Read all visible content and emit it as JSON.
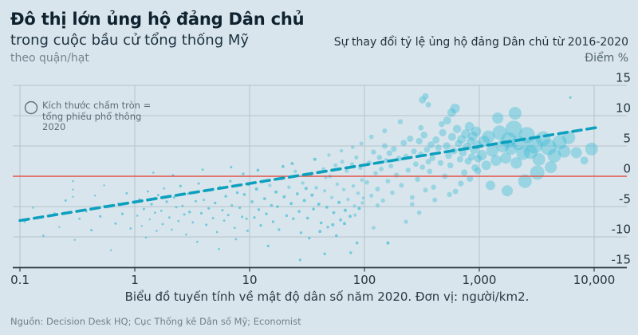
{
  "header": {
    "title": "Đô thị lớn ủng hộ đảng Dân chủ",
    "subtitle": "trong cuộc bầu cử tổng thống Mỹ",
    "unit_note": "theo quận/hạt",
    "right_title": "Sự thay đổi tỷ lệ ủng hộ đảng Dân chủ từ 2016-2020",
    "right_unit": "Điểm %"
  },
  "legend": {
    "icon": "circle-outline-icon",
    "lines": [
      "Kích thước chấm tròn =",
      "tổng phiếu phổ thông",
      "2020"
    ]
  },
  "caption": "Biểu đồ tuyến tính về mật độ dân số năm 2020. Đơn vị: người/km2.",
  "source": "Nguồn: Decision Desk HQ; Cục Thống kê Dân số Mỹ; Economist",
  "colors": {
    "background": "#d9e5ec",
    "brand_red": "#e3120b",
    "zero_line_red": "#e25549",
    "bubble_teal": "#49bfd6",
    "trend_teal": "#0ca0be",
    "grid": "#b4c3cb",
    "axis": "#2e3d47",
    "text_dark": "#24343f",
    "text_gray": "#72828c"
  },
  "chart_data": {
    "type": "scatter",
    "title": "Đô thị lớn ủng hộ đảng Dân chủ trong cuộc bầu cử tổng thống Mỹ, theo quận/hạt",
    "subtitle": "Sự thay đổi tỷ lệ ủng hộ đảng Dân chủ từ 2016-2020, Điểm %",
    "xlabel": "Mật độ dân số năm 2020 (người/km2), thang log",
    "ylabel": "Điểm %",
    "x_axis": {
      "scale": "log",
      "ticks": [
        0.1,
        1,
        10,
        100,
        1000,
        10000
      ],
      "tick_labels": [
        "0.1",
        "1",
        "10",
        "100",
        "1,000",
        "10,000"
      ],
      "range": [
        0.1,
        10000
      ]
    },
    "y_axis": {
      "ticks": [
        15,
        10,
        5,
        0,
        -5,
        -10,
        -15
      ],
      "range": [
        -15,
        15
      ],
      "grid": true
    },
    "zero_line": 0,
    "legend_note": "Kích thước chấm tròn = tổng phiếu phổ thông 2020",
    "trend_line": {
      "style": "dashed",
      "x": [
        0.1,
        11000
      ],
      "y": [
        -7.3,
        8.1
      ]
    },
    "points_format": [
      "density_per_km2",
      "change_points",
      "radius_px"
    ],
    "points": [
      [
        0.11,
        -7.5,
        1.3
      ],
      [
        0.13,
        -5.2,
        1.2
      ],
      [
        0.16,
        -9.8,
        1.4
      ],
      [
        0.2,
        -6.1,
        1.3
      ],
      [
        0.22,
        -8.4,
        1.2
      ],
      [
        0.25,
        -4,
        1.5
      ],
      [
        0.29,
        -0.8,
        1.2
      ],
      [
        0.29,
        -2.2,
        1.2
      ],
      [
        0.29,
        -3.4,
        1.2
      ],
      [
        0.3,
        -10.5,
        1.2
      ],
      [
        0.33,
        -7,
        1.4
      ],
      [
        0.38,
        -5.8,
        1.3
      ],
      [
        0.42,
        -8.9,
        1.5
      ],
      [
        0.45,
        -3.2,
        1.2
      ],
      [
        0.5,
        -6.6,
        1.6
      ],
      [
        0.54,
        -1.5,
        1.2
      ],
      [
        0.54,
        -4.9,
        1.3
      ],
      [
        0.6,
        -5,
        1.4
      ],
      [
        0.62,
        -12.2,
        1.2
      ],
      [
        0.68,
        -7.8,
        1.5
      ],
      [
        0.72,
        -4.5,
        1.3
      ],
      [
        0.78,
        -6.2,
        1.6
      ],
      [
        0.85,
        -2.8,
        1.4
      ],
      [
        0.92,
        -8.6,
        1.4
      ],
      [
        1.05,
        -6.5,
        1.3
      ],
      [
        1.1,
        -3.8,
        1.4
      ],
      [
        1.15,
        -8.2,
        1.2
      ],
      [
        1.2,
        -5.4,
        1.5
      ],
      [
        1.25,
        -10.1,
        1.3
      ],
      [
        1.3,
        -2.5,
        1.4
      ],
      [
        1.35,
        -7.1,
        1.2
      ],
      [
        1.4,
        -4.6,
        1.6
      ],
      [
        1.5,
        -6,
        1.4
      ],
      [
        1.55,
        -9,
        1.3
      ],
      [
        1.6,
        -3.1,
        1.5
      ],
      [
        1.7,
        -5.7,
        1.3
      ],
      [
        1.75,
        -7.9,
        1.4
      ],
      [
        1.8,
        -2,
        1.3
      ],
      [
        1.9,
        -4.2,
        1.6
      ],
      [
        2,
        -6.8,
        1.4
      ],
      [
        2.1,
        -8.8,
        1.3
      ],
      [
        2.2,
        -3.5,
        1.5
      ],
      [
        2.3,
        -5.1,
        1.4
      ],
      [
        2.4,
        -7.4,
        1.3
      ],
      [
        2.5,
        -1.6,
        1.6
      ],
      [
        2.6,
        -4.9,
        1.4
      ],
      [
        2.7,
        -6.3,
        1.5
      ],
      [
        2.8,
        -9.6,
        1.3
      ],
      [
        2.9,
        -2.9,
        1.4
      ],
      [
        3,
        -5.9,
        1.7
      ],
      [
        3.2,
        -7.6,
        1.4
      ],
      [
        3.4,
        -4.1,
        1.5
      ],
      [
        3.5,
        -10.8,
        1.3
      ],
      [
        3.6,
        -1.2,
        1.5
      ],
      [
        3.8,
        -6.1,
        1.6
      ],
      [
        4,
        -3.9,
        1.4
      ],
      [
        4.2,
        -8,
        1.5
      ],
      [
        4.4,
        -5.3,
        1.6
      ],
      [
        4.6,
        -2.3,
        1.4
      ],
      [
        4.8,
        -6.9,
        1.5
      ],
      [
        5,
        -4.4,
        1.7
      ],
      [
        5.2,
        -9.2,
        1.4
      ],
      [
        5.5,
        -1.8,
        1.6
      ],
      [
        5.8,
        -5.6,
        1.5
      ],
      [
        6,
        -7.3,
        1.4
      ],
      [
        6.2,
        -3.3,
        1.7
      ],
      [
        6.5,
        -6.4,
        1.5
      ],
      [
        6.8,
        -0.8,
        1.6
      ],
      [
        7,
        -4.8,
        1.5
      ],
      [
        7.4,
        -8.5,
        1.4
      ],
      [
        7.8,
        -2.7,
        1.7
      ],
      [
        8.2,
        -5.2,
        1.6
      ],
      [
        8.6,
        -6.7,
        1.5
      ],
      [
        9,
        -3,
        1.8
      ],
      [
        9.4,
        -7,
        1.5
      ],
      [
        9.8,
        -1.4,
        1.6
      ],
      [
        1.45,
        0.6,
        1.3
      ],
      [
        2.15,
        0.2,
        1.4
      ],
      [
        3.9,
        1.1,
        1.4
      ],
      [
        6.9,
        1.5,
        1.5
      ],
      [
        8.8,
        0.4,
        1.6
      ],
      [
        5.4,
        -12,
        1.3
      ],
      [
        7.6,
        -10.4,
        1.4
      ],
      [
        9.6,
        -9,
        1.5
      ],
      [
        10.5,
        -4.2,
        1.8
      ],
      [
        11,
        -6.8,
        1.6
      ],
      [
        11.5,
        -2.1,
        2
      ],
      [
        12,
        -5.5,
        1.7
      ],
      [
        12.5,
        -8.1,
        1.6
      ],
      [
        13,
        -0.9,
        2.1
      ],
      [
        13.5,
        -3.7,
        1.8
      ],
      [
        14,
        -6.2,
        1.7
      ],
      [
        15,
        -1.5,
        2.2
      ],
      [
        15.5,
        -4.8,
        1.8
      ],
      [
        16,
        -7.5,
        1.6
      ],
      [
        17,
        -2.6,
        2
      ],
      [
        17.5,
        -5,
        1.8
      ],
      [
        18,
        -8.8,
        1.6
      ],
      [
        19,
        -0.4,
        2.1
      ],
      [
        20,
        -3.4,
        1.9
      ],
      [
        21,
        -6.5,
        1.7
      ],
      [
        22,
        -1.8,
        2.2
      ],
      [
        23,
        -4.5,
        1.9
      ],
      [
        24,
        -7,
        1.7
      ],
      [
        25,
        0.8,
        2.3
      ],
      [
        26,
        -2.9,
        1.9
      ],
      [
        27,
        -5.8,
        1.8
      ],
      [
        28,
        -9.3,
        1.6
      ],
      [
        29,
        -1.1,
        2.2
      ],
      [
        30,
        -4,
        2
      ],
      [
        32,
        -6.9,
        1.8
      ],
      [
        34,
        0.3,
        2.3
      ],
      [
        35,
        -3.1,
        2
      ],
      [
        36,
        -5.4,
        1.8
      ],
      [
        38,
        -1.9,
        2.4
      ],
      [
        40,
        -4.6,
        2
      ],
      [
        42,
        -7.7,
        1.8
      ],
      [
        44,
        1.2,
        2.4
      ],
      [
        45,
        -2.4,
        2.1
      ],
      [
        47,
        -5.1,
        1.9
      ],
      [
        48,
        -8.4,
        1.7
      ],
      [
        50,
        0,
        2.5
      ],
      [
        52,
        -3.5,
        2.1
      ],
      [
        54,
        -6,
        1.9
      ],
      [
        56,
        1.8,
        2.5
      ],
      [
        58,
        -1.3,
        2.2
      ],
      [
        60,
        -4.3,
        2
      ],
      [
        62,
        -7.2,
        1.8
      ],
      [
        64,
        2.4,
        2.5
      ],
      [
        66,
        -2.2,
        2.2
      ],
      [
        68,
        -5.6,
        2
      ],
      [
        70,
        0.9,
        2.6
      ],
      [
        72,
        -3.8,
        2.2
      ],
      [
        75,
        -6.6,
        1.9
      ],
      [
        78,
        2,
        2.6
      ],
      [
        80,
        -1.6,
        2.3
      ],
      [
        82,
        -4.9,
        2.1
      ],
      [
        85,
        3.1,
        2.6
      ],
      [
        88,
        -2.8,
        2.3
      ],
      [
        90,
        -5.3,
        2
      ],
      [
        92,
        1.4,
        2.7
      ],
      [
        95,
        -0.6,
        2.4
      ],
      [
        98,
        -3.6,
        2.1
      ],
      [
        14.5,
        -11.5,
        1.6
      ],
      [
        33,
        -10.2,
        1.7
      ],
      [
        57,
        -9.8,
        1.8
      ],
      [
        76,
        -12.6,
        1.7
      ],
      [
        86,
        -11,
        1.8
      ],
      [
        23.5,
        2.1,
        1.9
      ],
      [
        37,
        2.8,
        2
      ],
      [
        49,
        3.5,
        2.1
      ],
      [
        63,
        4.2,
        2.2
      ],
      [
        79,
        4.8,
        2.3
      ],
      [
        94,
        5.4,
        2.4
      ],
      [
        11.8,
        1,
        1.8
      ],
      [
        19.5,
        1.6,
        1.9
      ],
      [
        27.5,
        -13.8,
        1.6
      ],
      [
        41,
        -9.1,
        1.9
      ],
      [
        53,
        -8,
        2
      ],
      [
        67,
        -7.8,
        2
      ],
      [
        83,
        -6.4,
        2.1
      ],
      [
        96,
        -4.4,
        2.2
      ],
      [
        31,
        -2,
        2
      ],
      [
        46,
        -0.2,
        2.2
      ],
      [
        45,
        -12.8,
        1.7
      ],
      [
        105,
        -1,
        2.8
      ],
      [
        110,
        2.2,
        3
      ],
      [
        115,
        -3.2,
        2.6
      ],
      [
        120,
        4,
        3.2
      ],
      [
        125,
        0.5,
        2.8
      ],
      [
        130,
        -2.1,
        3
      ],
      [
        135,
        3.1,
        3.4
      ],
      [
        140,
        1.2,
        2.9
      ],
      [
        145,
        -4,
        2.7
      ],
      [
        150,
        5,
        3.5
      ],
      [
        155,
        2.6,
        3.1
      ],
      [
        160,
        -0.8,
        2.9
      ],
      [
        165,
        3.8,
        3.6
      ],
      [
        170,
        1.7,
        3
      ],
      [
        175,
        -2.7,
        2.8
      ],
      [
        180,
        4.5,
        3.7
      ],
      [
        190,
        0.2,
        3.1
      ],
      [
        200,
        2.9,
        3.8
      ],
      [
        210,
        -1.5,
        3
      ],
      [
        220,
        5.5,
        3.9
      ],
      [
        230,
        3.3,
        3.3
      ],
      [
        240,
        1,
        3.1
      ],
      [
        250,
        6.2,
        4
      ],
      [
        260,
        -3.5,
        2.9
      ],
      [
        270,
        4.1,
        3.6
      ],
      [
        280,
        2,
        3.4
      ],
      [
        290,
        -0.5,
        3.2
      ],
      [
        300,
        5.8,
        4.2
      ],
      [
        310,
        3.6,
        3.6
      ],
      [
        320,
        1.5,
        3.3
      ],
      [
        330,
        6.8,
        4.3
      ],
      [
        340,
        -2.3,
        3
      ],
      [
        350,
        4.4,
        3.8
      ],
      [
        360,
        2.4,
        3.5
      ],
      [
        370,
        0.8,
        3.3
      ],
      [
        380,
        5.2,
        4.4
      ],
      [
        390,
        3,
        3.7
      ],
      [
        400,
        -1.8,
        3.2
      ],
      [
        420,
        6,
        4.5
      ],
      [
        440,
        4.7,
        4
      ],
      [
        460,
        2.2,
        3.6
      ],
      [
        480,
        7.2,
        4.6
      ],
      [
        500,
        0,
        3.4
      ],
      [
        520,
        5,
        4.8
      ],
      [
        540,
        3.4,
        4.2
      ],
      [
        560,
        1.8,
        3.8
      ],
      [
        580,
        6.5,
        5
      ],
      [
        600,
        4.2,
        4.4
      ],
      [
        620,
        -2.5,
        3.5
      ],
      [
        640,
        7.8,
        5.2
      ],
      [
        660,
        5.4,
        4.6
      ],
      [
        680,
        2.8,
        4
      ],
      [
        700,
        6.1,
        5.4
      ],
      [
        720,
        3.9,
        4.8
      ],
      [
        740,
        0.6,
        4
      ],
      [
        760,
        7,
        5.6
      ],
      [
        780,
        4.9,
        5
      ],
      [
        800,
        2.5,
        4.4
      ],
      [
        820,
        8.2,
        5.8
      ],
      [
        840,
        5.8,
        5.2
      ],
      [
        860,
        3.2,
        4.6
      ],
      [
        880,
        6.6,
        6
      ],
      [
        900,
        4.4,
        5.4
      ],
      [
        920,
        1.4,
        4.6
      ],
      [
        940,
        7.4,
        6.2
      ],
      [
        960,
        5.2,
        5.6
      ],
      [
        980,
        2.9,
        4.8
      ],
      [
        130,
        -4.8,
        2.6
      ],
      [
        260,
        -4.6,
        2.8
      ],
      [
        410,
        -3.9,
        3
      ],
      [
        550,
        -3,
        3.2
      ],
      [
        690,
        -1.2,
        3.6
      ],
      [
        830,
        -0.4,
        4
      ],
      [
        970,
        0.9,
        4.4
      ],
      [
        150,
        7.5,
        3
      ],
      [
        310,
        8,
        3.4
      ],
      [
        470,
        8.6,
        3.8
      ],
      [
        320,
        12.6,
        4.5
      ],
      [
        340,
        13.2,
        4
      ],
      [
        360,
        11.8,
        3.4
      ],
      [
        205,
        9,
        3.2
      ],
      [
        115,
        6.5,
        2.9
      ],
      [
        525,
        9.2,
        5
      ],
      [
        575,
        10.5,
        5.4
      ],
      [
        615,
        11.2,
        6
      ],
      [
        120,
        -8.5,
        2.4
      ],
      [
        160,
        -11,
        2
      ],
      [
        230,
        -7.5,
        2.6
      ],
      [
        300,
        -6,
        2.8
      ],
      [
        1050,
        3.5,
        6.5
      ],
      [
        1100,
        5.8,
        7
      ],
      [
        1150,
        1.8,
        6
      ],
      [
        1200,
        6.5,
        8
      ],
      [
        1300,
        4.2,
        7.5
      ],
      [
        1400,
        2.6,
        6.8
      ],
      [
        1500,
        7.2,
        9
      ],
      [
        1600,
        5,
        8.2
      ],
      [
        1700,
        3,
        7
      ],
      [
        1800,
        6,
        9.5
      ],
      [
        1900,
        4.6,
        8
      ],
      [
        2000,
        7.8,
        10.5
      ],
      [
        2100,
        2.2,
        7.2
      ],
      [
        2200,
        5.5,
        9
      ],
      [
        2400,
        3.8,
        8.4
      ],
      [
        2600,
        6.8,
        10
      ],
      [
        2800,
        4,
        8.8
      ],
      [
        3000,
        5.2,
        11
      ],
      [
        3300,
        2.8,
        8
      ],
      [
        3600,
        6.2,
        9.4
      ],
      [
        4000,
        4.8,
        10
      ],
      [
        4500,
        3.4,
        8.6
      ],
      [
        5000,
        5.6,
        9
      ],
      [
        5500,
        4.1,
        7.8
      ],
      [
        6000,
        6.4,
        8.2
      ],
      [
        7000,
        3.9,
        7
      ],
      [
        8200,
        2.6,
        5
      ],
      [
        9500,
        4.5,
        8
      ],
      [
        1250,
        -1.5,
        6
      ],
      [
        1750,
        -2.4,
        7
      ],
      [
        2500,
        -0.8,
        8.5
      ],
      [
        3200,
        0.6,
        9
      ],
      [
        4200,
        1.5,
        7.5
      ],
      [
        1450,
        9.6,
        7
      ],
      [
        2050,
        10.4,
        8
      ],
      [
        6200,
        13,
        1.5
      ]
    ]
  }
}
